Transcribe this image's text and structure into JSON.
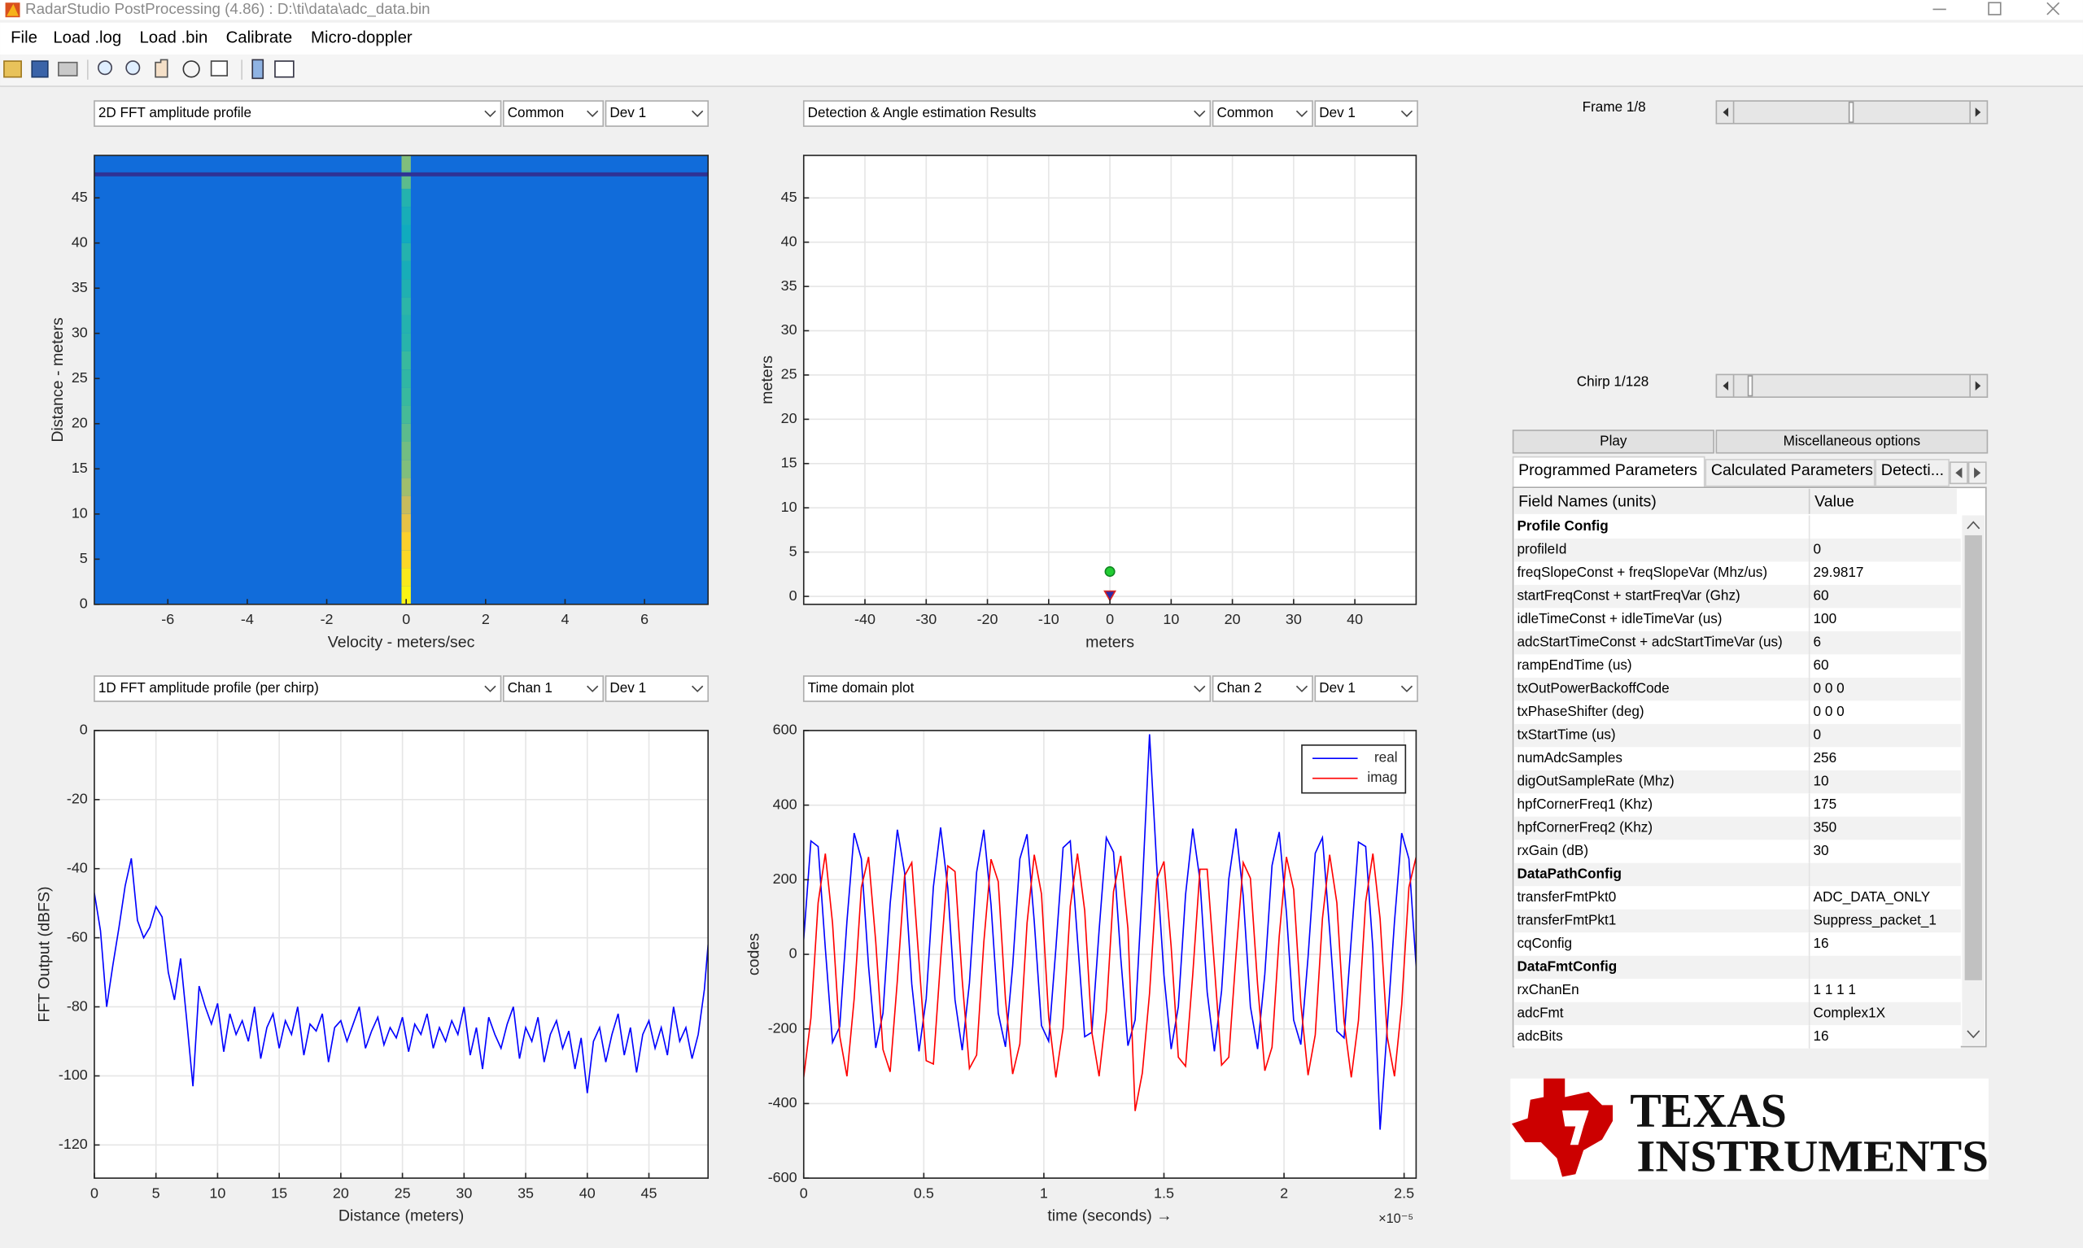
{
  "window": {
    "title": "RadarStudio PostProcessing (4.86) : D:\\ti\\data\\adc_data.bin"
  },
  "menu": [
    "File",
    "Load .log",
    "Load .bin",
    "Calibrate",
    "Micro-doppler"
  ],
  "panels": [
    {
      "dropdowns": [
        "2D FFT amplitude profile",
        "Common",
        "Dev 1"
      ],
      "chart": {
        "type": "heatmap",
        "xlabel": "Velocity - meters/sec",
        "ylabel": "Distance - meters",
        "xlim": [
          -7.85,
          7.6
        ],
        "xticks": [
          -6,
          -4,
          -2,
          0,
          2,
          4,
          6
        ],
        "ylim": [
          0,
          49.7
        ],
        "yticks": [
          0,
          5,
          10,
          15,
          20,
          25,
          30,
          35,
          40,
          45
        ],
        "grid": false,
        "colormap": [
          "#352a87",
          "#0f5cdd",
          "#1481d6",
          "#06a7c6",
          "#38b99e",
          "#92bf73",
          "#d9ba56",
          "#fcce2e",
          "#f9fb0e"
        ],
        "background": 0.18,
        "band": {
          "y": 47.6,
          "value": 0.02
        },
        "ridge": {
          "x": 0,
          "y": [
            0,
            2,
            4,
            6,
            8,
            10,
            12,
            14,
            16,
            18,
            20,
            22,
            24,
            26,
            28,
            30,
            32,
            34,
            36,
            38,
            40,
            42,
            44,
            46,
            48
          ],
          "values": [
            0.98,
            0.95,
            0.9,
            0.88,
            0.8,
            0.72,
            0.65,
            0.6,
            0.58,
            0.55,
            0.52,
            0.5,
            0.48,
            0.5,
            0.46,
            0.45,
            0.47,
            0.44,
            0.42,
            0.45,
            0.4,
            0.42,
            0.45,
            0.55,
            0.6
          ]
        }
      }
    },
    {
      "dropdowns": [
        "Detection & Angle estimation Results",
        "Common",
        "Dev 1"
      ],
      "chart": {
        "type": "scatter",
        "xlabel": "meters",
        "ylabel": "meters",
        "xlim": [
          -50,
          50
        ],
        "xticks": [
          -40,
          -30,
          -20,
          -10,
          0,
          10,
          20,
          30,
          40
        ],
        "ylim": [
          -0.9,
          49.8
        ],
        "yticks": [
          0,
          5,
          10,
          15,
          20,
          25,
          30,
          35,
          40,
          45
        ],
        "grid": true,
        "series": [
          {
            "color": "#22cc33",
            "edgecolor": "#118822",
            "marker": "circle",
            "x": [
              0
            ],
            "values": [
              2.8
            ]
          },
          {
            "color": "#2a2aa8",
            "edgecolor": "#dd2222",
            "marker": "triangle-down",
            "x": [
              0
            ],
            "values": [
              0
            ]
          }
        ]
      }
    },
    {
      "dropdowns": [
        "1D FFT amplitude profile (per chirp)",
        "Chan 1",
        "Dev 1"
      ],
      "chart": {
        "type": "line",
        "xlabel": "Distance (meters)",
        "ylabel": "FFT Output (dBFS)",
        "xlim": [
          0,
          49.8
        ],
        "xticks": [
          0,
          5,
          10,
          15,
          20,
          25,
          30,
          35,
          40,
          45
        ],
        "ylim": [
          -129.6,
          0
        ],
        "yticks": [
          -120,
          -100,
          -80,
          -60,
          -40,
          -20,
          0
        ],
        "grid": true,
        "series": [
          {
            "color": "#0000ff",
            "x": [
              0,
              0.5,
              1,
              1.5,
              2,
              2.5,
              3,
              3.5,
              4,
              4.5,
              5,
              5.5,
              6,
              6.5,
              7,
              7.5,
              8,
              8.5,
              9,
              9.5,
              10,
              10.5,
              11,
              11.5,
              12,
              12.5,
              13,
              13.5,
              14,
              14.5,
              15,
              15.5,
              16,
              16.5,
              17,
              17.5,
              18,
              18.5,
              19,
              19.5,
              20,
              20.5,
              21,
              21.5,
              22,
              22.5,
              23,
              23.5,
              24,
              24.5,
              25,
              25.5,
              26,
              26.5,
              27,
              27.5,
              28,
              28.5,
              29,
              29.5,
              30,
              30.5,
              31,
              31.5,
              32,
              32.5,
              33,
              33.5,
              34,
              34.5,
              35,
              35.5,
              36,
              36.5,
              37,
              37.5,
              38,
              38.5,
              39,
              39.5,
              40,
              40.5,
              41,
              41.5,
              42,
              42.5,
              43,
              43.5,
              44,
              44.5,
              45,
              45.5,
              46,
              46.5,
              47,
              47.5,
              48,
              48.5,
              49,
              49.5,
              49.8
            ],
            "values": [
              -47,
              -58,
              -80,
              -68,
              -57,
              -45,
              -37,
              -55,
              -60,
              -57,
              -51,
              -54,
              -70,
              -78,
              -66,
              -84,
              -103,
              -74,
              -80,
              -85,
              -79,
              -93,
              -82,
              -88,
              -84,
              -90,
              -80,
              -95,
              -86,
              -82,
              -92,
              -84,
              -88,
              -80,
              -94,
              -85,
              -87,
              -82,
              -96,
              -86,
              -84,
              -90,
              -85,
              -80,
              -92,
              -87,
              -83,
              -91,
              -86,
              -89,
              -83,
              -93,
              -85,
              -88,
              -82,
              -92,
              -86,
              -90,
              -84,
              -88,
              -80,
              -94,
              -86,
              -98,
              -83,
              -88,
              -92,
              -85,
              -80,
              -95,
              -86,
              -90,
              -83,
              -96,
              -88,
              -84,
              -92,
              -87,
              -98,
              -89,
              -105,
              -90,
              -86,
              -96,
              -88,
              -82,
              -94,
              -86,
              -99,
              -88,
              -84,
              -92,
              -86,
              -94,
              -80,
              -90,
              -86,
              -95,
              -88,
              -75,
              -62
            ]
          }
        ]
      }
    },
    {
      "dropdowns": [
        "Time domain plot",
        "Chan 2",
        "Dev 1"
      ],
      "chart": {
        "type": "line",
        "xlabel": "time  (seconds) →",
        "ylabel": "codes",
        "x_exponent_label": "×10⁻⁵",
        "xlim": [
          0,
          2.55
        ],
        "xticks": [
          0,
          0.5,
          1,
          1.5,
          2,
          2.5
        ],
        "ylim": [
          -600,
          600
        ],
        "yticks": [
          -600,
          -400,
          -200,
          0,
          200,
          400,
          600
        ],
        "grid": true,
        "legend": "upper right",
        "series": [
          {
            "name": "real",
            "color": "#0000ff",
            "x": [
              0,
              0.03,
              0.06,
              0.09,
              0.12,
              0.15,
              0.18,
              0.21,
              0.24,
              0.27,
              0.3,
              0.33,
              0.36,
              0.39,
              0.42,
              0.45,
              0.48,
              0.51,
              0.54,
              0.57,
              0.6,
              0.63,
              0.66,
              0.69,
              0.72,
              0.75,
              0.78,
              0.81,
              0.84,
              0.87,
              0.9,
              0.93,
              0.96,
              0.99,
              1.02,
              1.05,
              1.08,
              1.11,
              1.14,
              1.17,
              1.2,
              1.23,
              1.26,
              1.29,
              1.32,
              1.35,
              1.38,
              1.41,
              1.44,
              1.47,
              1.5,
              1.53,
              1.56,
              1.59,
              1.62,
              1.65,
              1.68,
              1.71,
              1.74,
              1.77,
              1.8,
              1.83,
              1.86,
              1.89,
              1.92,
              1.95,
              1.98,
              2.01,
              2.04,
              2.07,
              2.1,
              2.13,
              2.16,
              2.19,
              2.22,
              2.25,
              2.28,
              2.31,
              2.34,
              2.37,
              2.4,
              2.43,
              2.46,
              2.49,
              2.52,
              2.55
            ],
            "values": [
              40,
              304,
              289,
              16,
              -236,
              -194,
              88,
              325,
              256,
              -32,
              -251,
              -158,
              136,
              334,
              220,
              -80,
              -260,
              -119,
              181,
              340,
              178,
              -122,
              -257,
              -77,
              220,
              334,
              133,
              -158,
              -248,
              -32,
              256,
              322,
              88,
              -191,
              -233,
              16,
              286,
              304,
              40,
              -221,
              -209,
              64,
              313,
              274,
              -8,
              -245,
              -176,
              180,
              590,
              238,
              -56,
              -254,
              -140,
              160,
              337,
              199,
              -101,
              -260,
              -98,
              202,
              337,
              157,
              -140,
              -254,
              -53,
              238,
              328,
              112,
              -176,
              -242,
              -8,
              271,
              313,
              64,
              -206,
              -224,
              40,
              301,
              289,
              16,
              -470,
              -194,
              88,
              325,
              256,
              -32
            ]
          },
          {
            "name": "imag",
            "color": "#ff0000",
            "x": [
              0,
              0.03,
              0.06,
              0.09,
              0.12,
              0.15,
              0.18,
              0.21,
              0.24,
              0.27,
              0.3,
              0.33,
              0.36,
              0.39,
              0.42,
              0.45,
              0.48,
              0.51,
              0.54,
              0.57,
              0.6,
              0.63,
              0.66,
              0.69,
              0.72,
              0.75,
              0.78,
              0.81,
              0.84,
              0.87,
              0.9,
              0.93,
              0.96,
              0.99,
              1.02,
              1.05,
              1.08,
              1.11,
              1.14,
              1.17,
              1.2,
              1.23,
              1.26,
              1.29,
              1.32,
              1.35,
              1.38,
              1.41,
              1.44,
              1.47,
              1.5,
              1.53,
              1.56,
              1.59,
              1.62,
              1.65,
              1.68,
              1.71,
              1.74,
              1.77,
              1.8,
              1.83,
              1.86,
              1.89,
              1.92,
              1.95,
              1.98,
              2.01,
              2.04,
              2.07,
              2.1,
              2.13,
              2.16,
              2.19,
              2.22,
              2.25,
              2.28,
              2.31,
              2.34,
              2.37,
              2.4,
              2.43,
              2.46,
              2.49,
              2.52,
              2.55
            ],
            "values": [
              -330,
              -171,
              138,
              270,
              84,
              -219,
              -327,
              -120,
              180,
              261,
              33,
              -255,
              -315,
              -69,
              210,
              246,
              -18,
              -285,
              -294,
              -15,
              237,
              222,
              -69,
              -306,
              -270,
              33,
              255,
              195,
              -120,
              -321,
              -240,
              84,
              267,
              162,
              -168,
              -330,
              -198,
              129,
              270,
              117,
              -210,
              -327,
              -153,
              168,
              264,
              69,
              -420,
              -318,
              -105,
              201,
              249,
              21,
              -276,
              -300,
              -54,
              228,
              228,
              -30,
              -297,
              -276,
              -3,
              246,
              204,
              -81,
              -312,
              -249,
              48,
              261,
              174,
              -132,
              -324,
              -216,
              96,
              267,
              138,
              -180,
              -330,
              -177,
              141,
              270,
              96,
              -222,
              -327,
              -135,
              180,
              261
            ]
          }
        ]
      }
    }
  ],
  "controls": {
    "frame_label": "Frame 1/8",
    "chirp_label": "Chirp 1/128"
  },
  "buttons": [
    "Play",
    "Miscellaneous options"
  ],
  "tabs": [
    "Programmed Parameters",
    "Calculated Parameters",
    "Detecti..."
  ],
  "table": {
    "headers": [
      "Field Names    (units)",
      "Value"
    ],
    "rows": [
      {
        "section": "Profile Config"
      },
      {
        "field": "profileId",
        "value": "0"
      },
      {
        "field": "freqSlopeConst + freqSlopeVar (Mhz/us)",
        "value": "29.9817"
      },
      {
        "field": "startFreqConst + startFreqVar (Ghz)",
        "value": "60"
      },
      {
        "field": "idleTimeConst + idleTimeVar (us)",
        "value": "100"
      },
      {
        "field": "adcStartTimeConst + adcStartTimeVar (us)",
        "value": "6"
      },
      {
        "field": "rampEndTime (us)",
        "value": "60"
      },
      {
        "field": "txOutPowerBackoffCode",
        "value": "0 0 0"
      },
      {
        "field": "txPhaseShifter (deg)",
        "value": "0 0 0"
      },
      {
        "field": "txStartTime (us)",
        "value": "0"
      },
      {
        "field": "numAdcSamples",
        "value": "256"
      },
      {
        "field": "digOutSampleRate (Mhz)",
        "value": "10"
      },
      {
        "field": "hpfCornerFreq1 (Khz)",
        "value": "175"
      },
      {
        "field": "hpfCornerFreq2 (Khz)",
        "value": "350"
      },
      {
        "field": "rxGain (dB)",
        "value": "30"
      },
      {
        "section": "DataPathConfig"
      },
      {
        "field": "transferFmtPkt0",
        "value": "ADC_DATA_ONLY"
      },
      {
        "field": "transferFmtPkt1",
        "value": "Suppress_packet_1"
      },
      {
        "field": "cqConfig",
        "value": "16"
      },
      {
        "section": "DataFmtConfig"
      },
      {
        "field": "rxChanEn",
        "value": "1 1 1 1"
      },
      {
        "field": "adcFmt",
        "value": "Complex1X"
      },
      {
        "field": "adcBits",
        "value": "16"
      }
    ]
  },
  "logo": {
    "line1": "TEXAS",
    "line2": "INSTRUMENTS"
  }
}
